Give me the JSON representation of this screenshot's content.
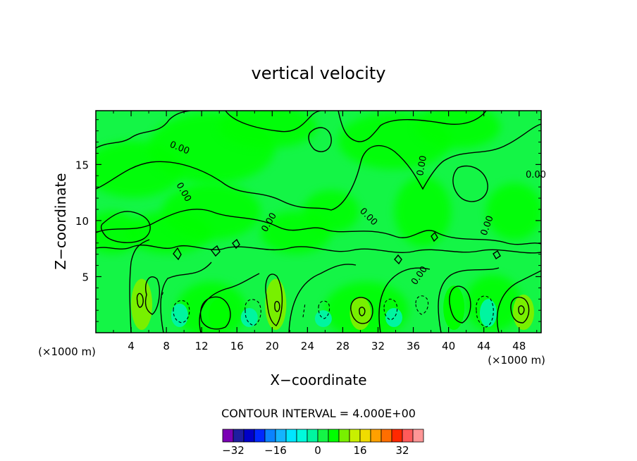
{
  "chart_data": {
    "type": "heatmap",
    "title": "vertical velocity",
    "xlabel": "X−coordinate",
    "ylabel": "Z−coordinate",
    "x_unit_note_left": "(×1000 m)",
    "x_unit_note_right": "(×1000 m)",
    "xlim": [
      0,
      50.5
    ],
    "ylim": [
      0,
      19.8
    ],
    "xticks": [
      4,
      8,
      12,
      16,
      20,
      24,
      28,
      32,
      36,
      40,
      44,
      48
    ],
    "xtick_labels": [
      "4",
      "8",
      "12",
      "16",
      "20",
      "24",
      "28",
      "32",
      "36",
      "40",
      "44",
      "48"
    ],
    "yticks": [
      5,
      10,
      15
    ],
    "ytick_labels": [
      "5",
      "10",
      "15"
    ],
    "contour_interval_text": "CONTOUR INTERVAL = 4.000E+00",
    "contour_label": "0.00",
    "colorbar": {
      "levels": [
        -36,
        -32,
        -28,
        -24,
        -20,
        -16,
        -12,
        -8,
        -4,
        0,
        4,
        8,
        12,
        16,
        20,
        24,
        28,
        32,
        36
      ],
      "colors": [
        "#7a00b4",
        "#1e1ea0",
        "#0000c8",
        "#0028ff",
        "#0a82ff",
        "#14b4ff",
        "#00e6ff",
        "#00fadc",
        "#00f5a0",
        "#14f546",
        "#00ff00",
        "#78f000",
        "#c8f000",
        "#f0dc00",
        "#ffa000",
        "#ff6e00",
        "#ff2800",
        "#ff5a5a",
        "#ff9696"
      ],
      "tick_labels": [
        {
          "value": -32,
          "text": "−32"
        },
        {
          "value": -16,
          "text": "−16"
        },
        {
          "value": 0,
          "text": "0"
        },
        {
          "value": 16,
          "text": "16"
        },
        {
          "value": 32,
          "text": "32"
        }
      ]
    },
    "positive_cells": [
      {
        "x": 5.2,
        "z_top": 4.8,
        "peak": 8
      },
      {
        "x": 14.0,
        "z_top": 3.0,
        "peak": 4
      },
      {
        "x": 20.4,
        "z_top": 4.8,
        "peak": 8
      },
      {
        "x": 30.0,
        "z_top": 3.2,
        "peak": 8
      },
      {
        "x": 40.6,
        "z_top": 4.2,
        "peak": 4
      },
      {
        "x": 48.5,
        "z_top": 3.4,
        "peak": 8
      }
    ],
    "negative_cells": [
      {
        "x": 9.5,
        "z_top": 2.6,
        "peak": -4
      },
      {
        "x": 17.4,
        "z_top": 2.2,
        "peak": -4
      },
      {
        "x": 25.8,
        "z_top": 2.0,
        "peak": -4
      },
      {
        "x": 33.8,
        "z_top": 2.2,
        "peak": -4
      },
      {
        "x": 44.5,
        "z_top": 3.0,
        "peak": -4
      }
    ]
  }
}
